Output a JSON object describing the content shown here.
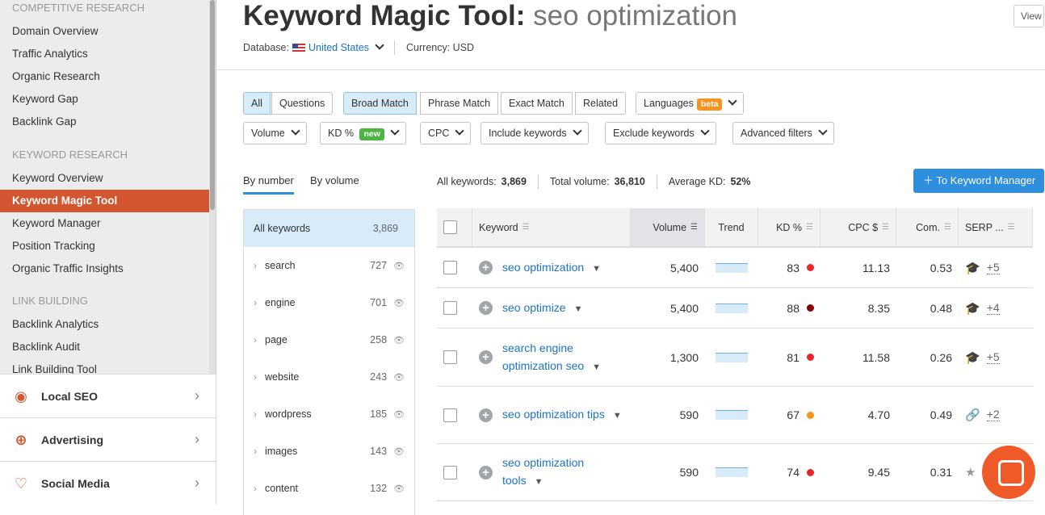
{
  "sidebar": {
    "sections": [
      {
        "title": "COMPETITIVE RESEARCH",
        "items": [
          "Domain Overview",
          "Traffic Analytics",
          "Organic Research",
          "Keyword Gap",
          "Backlink Gap"
        ]
      },
      {
        "title": "KEYWORD RESEARCH",
        "items": [
          "Keyword Overview",
          "Keyword Magic Tool",
          "Keyword Manager",
          "Position Tracking",
          "Organic Traffic Insights"
        ]
      },
      {
        "title": "LINK BUILDING",
        "items": [
          "Backlink Analytics",
          "Backlink Audit",
          "Link Building Tool"
        ]
      }
    ],
    "active": "Keyword Magic Tool",
    "panels": [
      "Local SEO",
      "Advertising",
      "Social Media"
    ]
  },
  "header": {
    "title": "Keyword Magic Tool:",
    "query": "seo optimization",
    "database_label": "Database:",
    "database": "United States",
    "currency": "Currency: USD",
    "view": "View"
  },
  "filters": {
    "row1": [
      "All",
      "Questions",
      "Broad Match",
      "Phrase Match",
      "Exact Match",
      "Related"
    ],
    "languages": "Languages",
    "beta": "beta",
    "volume": "Volume",
    "kd": "KD %",
    "new": "new",
    "cpc": "CPC",
    "include": "Include keywords",
    "exclude": "Exclude keywords",
    "advanced": "Advanced filters"
  },
  "tabs": [
    "By number",
    "By volume"
  ],
  "stats": {
    "all_label": "All keywords:",
    "all": "3,869",
    "total_label": "Total volume:",
    "total": "36,810",
    "kd_label": "Average KD:",
    "kd": "52%"
  },
  "to_manager": "To Keyword Manager",
  "groups": [
    {
      "name": "All keywords",
      "count": "3,869"
    },
    {
      "name": "search",
      "count": "727"
    },
    {
      "name": "engine",
      "count": "701"
    },
    {
      "name": "page",
      "count": "258"
    },
    {
      "name": "website",
      "count": "243"
    },
    {
      "name": "wordpress",
      "count": "185"
    },
    {
      "name": "images",
      "count": "143"
    },
    {
      "name": "content",
      "count": "132"
    }
  ],
  "table": {
    "columns": [
      "Keyword",
      "Volume",
      "Trend",
      "KD %",
      "CPC $",
      "Com.",
      "SERP ..."
    ],
    "rows": [
      {
        "keyword": "seo optimization",
        "volume": "5,400",
        "kd": "83",
        "kd_color": "#e8262a",
        "cpc": "11.13",
        "com": "0.53",
        "serp_icon": "graduation-cap-icon",
        "serp_more": "+5"
      },
      {
        "keyword": "seo optimize",
        "volume": "5,400",
        "kd": "88",
        "kd_color": "#8b0000",
        "cpc": "8.35",
        "com": "0.48",
        "serp_icon": "graduation-cap-icon",
        "serp_more": "+4"
      },
      {
        "keyword": "search engine optimization seo",
        "volume": "1,300",
        "kd": "81",
        "kd_color": "#e8262a",
        "cpc": "11.58",
        "com": "0.26",
        "serp_icon": "graduation-cap-icon",
        "serp_more": "+5"
      },
      {
        "keyword": "seo optimization tips",
        "volume": "590",
        "kd": "67",
        "kd_color": "#f7941d",
        "cpc": "4.70",
        "com": "0.49",
        "serp_icon": "link-icon",
        "serp_more": "+2"
      },
      {
        "keyword": "seo optimization tools",
        "volume": "590",
        "kd": "74",
        "kd_color": "#e8262a",
        "cpc": "9.45",
        "com": "0.31",
        "serp_icon": "star-icon",
        "serp_more": ""
      }
    ]
  }
}
